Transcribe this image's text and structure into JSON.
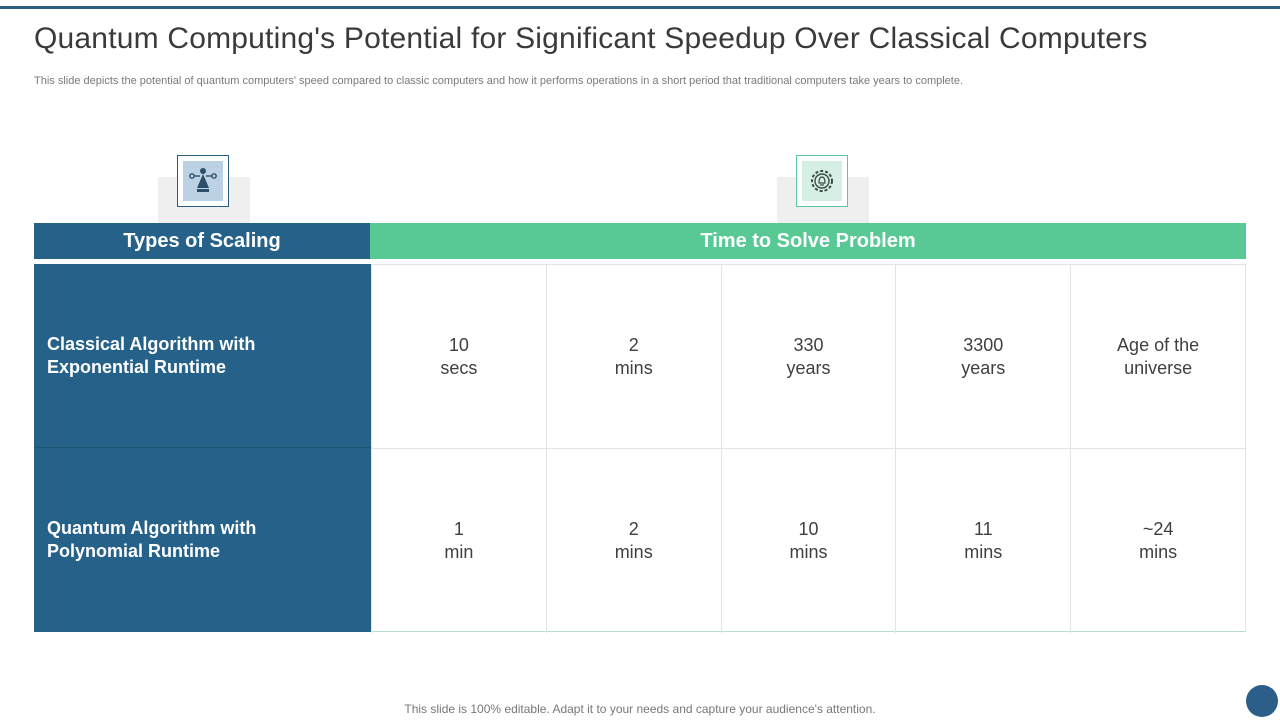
{
  "title": "Quantum Computing's Potential for Significant Speedup Over Classical Computers",
  "subtitle": "This slide depicts the potential of quantum computers' speed compared to classic computers and how it performs operations in a short period that traditional computers take years to complete.",
  "icons": {
    "left": "network-node-icon",
    "right": "gear-bulb-icon"
  },
  "table": {
    "headers": {
      "types": "Types of Scaling",
      "time": "Time to Solve Problem"
    },
    "rows": [
      {
        "label": "Classical Algorithm with Exponential Runtime",
        "cells": [
          "10\nsecs",
          "2\nmins",
          "330\nyears",
          "3300\nyears",
          "Age of the\nuniverse"
        ]
      },
      {
        "label": "Quantum Algorithm with Polynomial Runtime",
        "cells": [
          "1\nmin",
          "2\nmins",
          "10\nmins",
          "11\nmins",
          "~24\nmins"
        ]
      }
    ]
  },
  "footer": "This slide is 100% editable. Adapt it to your needs and capture your audience's attention.",
  "colors": {
    "accent_blue": "#26618a",
    "accent_green": "#58c995"
  }
}
